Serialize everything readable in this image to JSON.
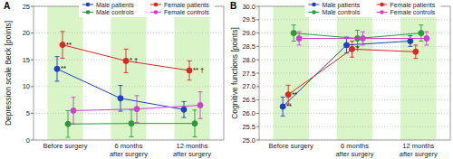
{
  "chart_data": [
    {
      "type": "line",
      "panel_label": "A",
      "y_label": "Depression scale Beck [points]",
      "categories": [
        "Before surgery",
        "6 months\nafter surgery",
        "12 months\nafter surgery"
      ],
      "ylim": [
        0,
        25
      ],
      "yticks": [
        0,
        5,
        10,
        15,
        20,
        25
      ],
      "grid": true,
      "legend": "top",
      "series": [
        {
          "name": "Male patients",
          "color": "#1f3fc4",
          "marker": "circle",
          "values": [
            13.3,
            7.8,
            5.7
          ],
          "errors": [
            2.3,
            2.4,
            1.5
          ]
        },
        {
          "name": "Female patients",
          "color": "#e02424",
          "marker": "circle",
          "values": [
            17.8,
            14.8,
            13.0
          ],
          "errors": [
            2.5,
            2.2,
            1.8
          ]
        },
        {
          "name": "Male controls",
          "color": "#2a9a3a",
          "marker": "circle",
          "values": [
            3.0,
            3.1,
            3.1
          ],
          "errors": [
            2.5,
            2.5,
            2.5
          ]
        },
        {
          "name": "Female controls",
          "color": "#d040d0",
          "marker": "circle",
          "values": [
            5.5,
            5.8,
            6.5
          ],
          "errors": [
            2.5,
            2.5,
            2.5
          ]
        }
      ],
      "annotations": [
        {
          "text": "**",
          "series": 0,
          "index": 0
        },
        {
          "text": "**",
          "series": 1,
          "index": 0
        },
        {
          "text": "* †",
          "series": 1,
          "index": 1
        },
        {
          "text": "** †",
          "series": 1,
          "index": 2
        }
      ]
    },
    {
      "type": "line",
      "panel_label": "B",
      "y_label": "Cognitive functions [points]",
      "categories": [
        "Before surgery",
        "6 months\nafter surgery",
        "12 months\nafter surgery"
      ],
      "ylim": [
        25,
        30
      ],
      "yticks": [
        {
          "value": 25,
          "label": "25.0"
        },
        {
          "value": 25.5,
          "label": "25.5"
        },
        {
          "value": 26,
          "label": "26.0"
        },
        {
          "value": 26.5,
          "label": "26.5"
        },
        {
          "value": 27,
          "label": "27.0"
        },
        {
          "value": 27.5,
          "label": "27.5"
        },
        {
          "value": 28,
          "label": "28.0"
        },
        {
          "value": 28.5,
          "label": "28.5"
        },
        {
          "value": 29,
          "label": "29.0"
        },
        {
          "value": 29.5,
          "label": "29.5"
        },
        {
          "value": 30,
          "label": "30.0"
        }
      ],
      "grid": true,
      "legend": "top",
      "series": [
        {
          "name": "Male patients",
          "color": "#1f3fc4",
          "marker": "circle",
          "values": [
            26.25,
            28.55,
            28.7
          ],
          "errors": [
            0.35,
            0.3,
            0.2
          ]
        },
        {
          "name": "Female patients",
          "color": "#e02424",
          "marker": "circle",
          "values": [
            26.7,
            28.4,
            28.3
          ],
          "errors": [
            0.35,
            0.3,
            0.25
          ]
        },
        {
          "name": "Male controls",
          "color": "#2a9a3a",
          "marker": "circle",
          "values": [
            29.0,
            28.8,
            29.0
          ],
          "errors": [
            0.3,
            0.3,
            0.3
          ]
        },
        {
          "name": "Female controls",
          "color": "#d040d0",
          "marker": "circle",
          "values": [
            28.8,
            28.8,
            28.8
          ],
          "errors": [
            0.25,
            0.25,
            0.25
          ]
        }
      ],
      "annotations": [
        {
          "text": "**",
          "series": 0,
          "index": 0
        },
        {
          "text": "**",
          "series": 1,
          "index": 0
        },
        {
          "text": "†",
          "series": 1,
          "index": 1
        }
      ]
    }
  ]
}
